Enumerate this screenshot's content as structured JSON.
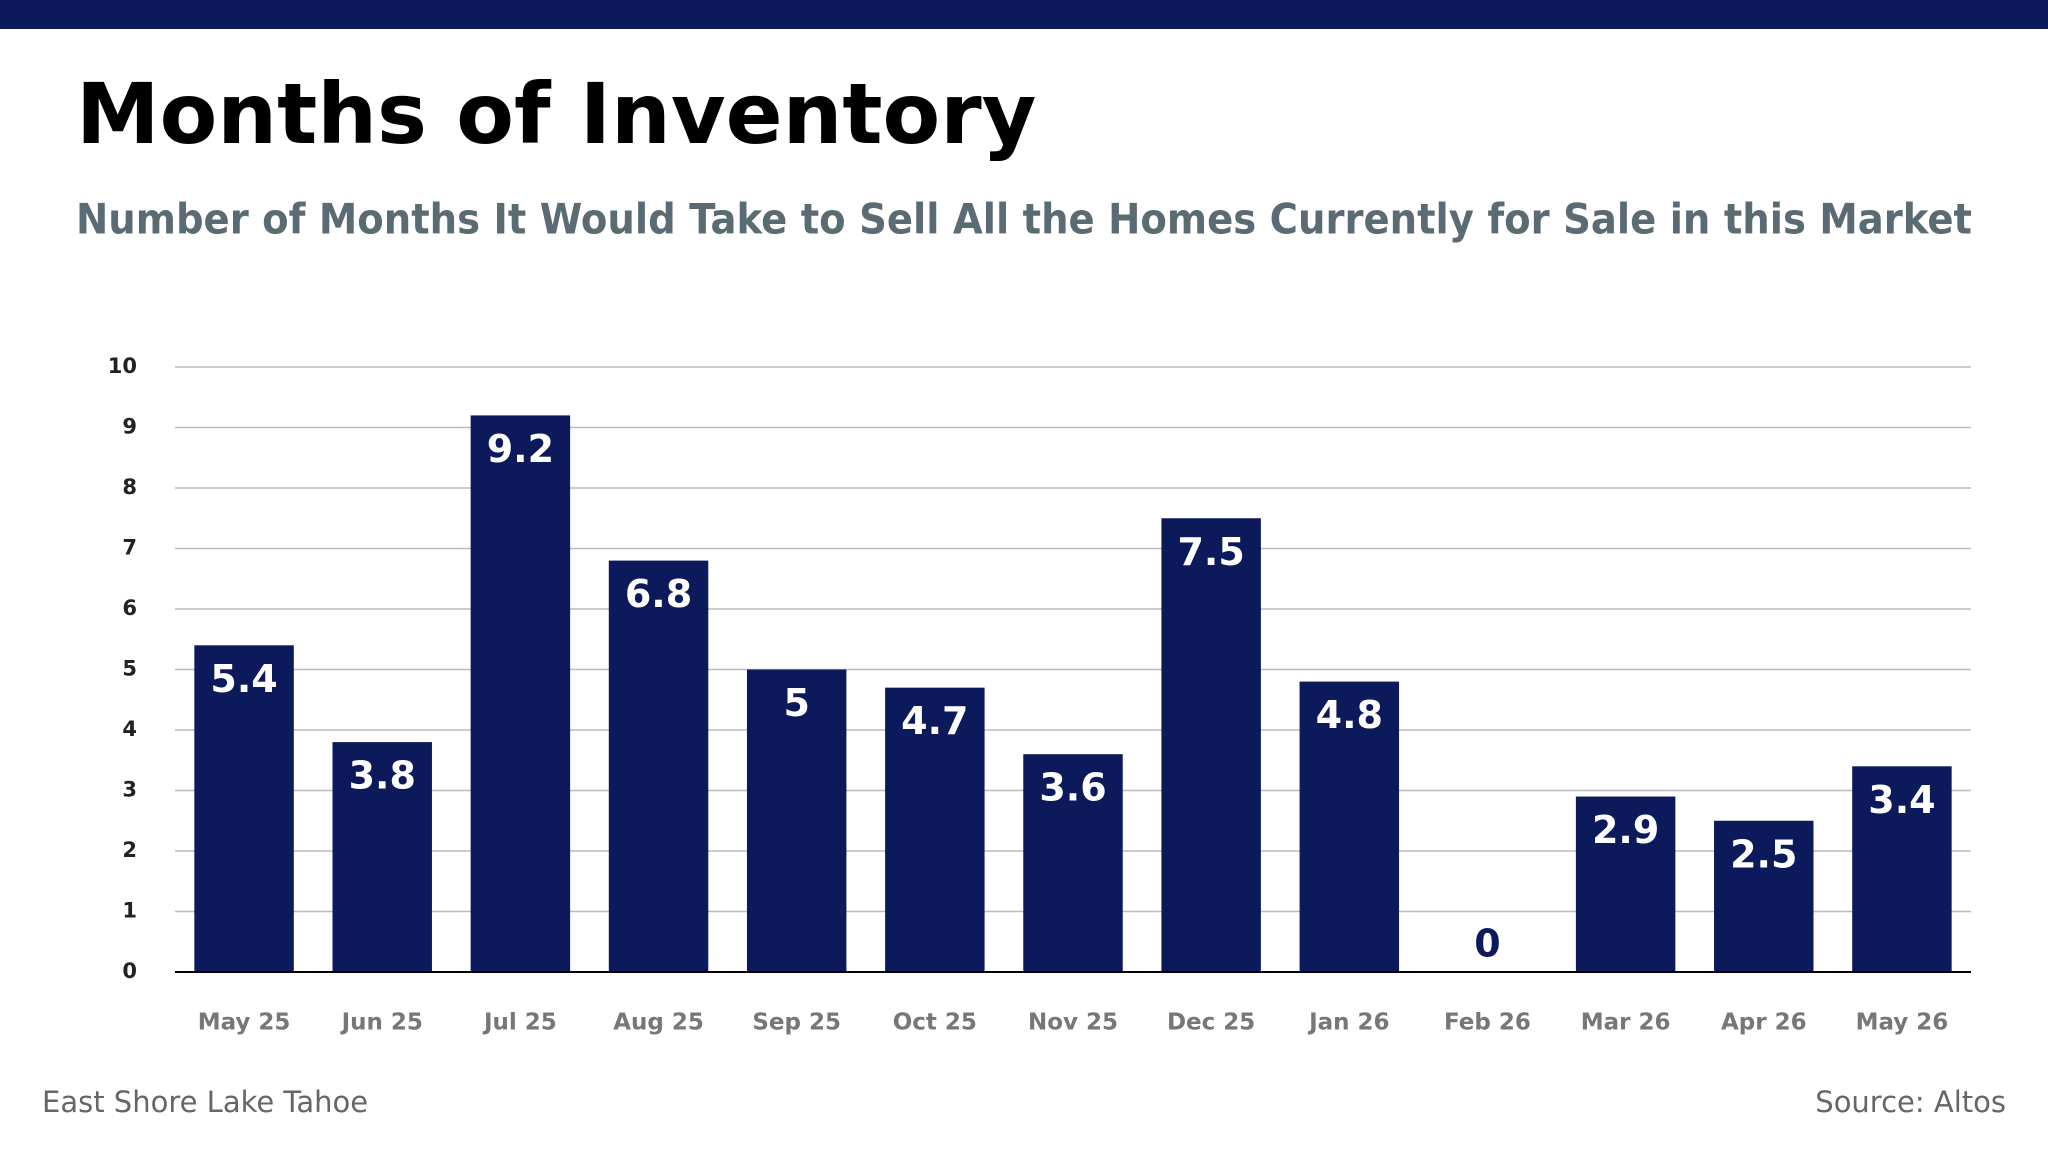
{
  "chart_data": {
    "type": "bar",
    "title": "Months of Inventory",
    "subtitle": "Number of Months It Would Take to Sell All the Homes Currently for Sale in this Market",
    "categories": [
      "May 25",
      "Jun 25",
      "Jul 25",
      "Aug 25",
      "Sep 25",
      "Oct 25",
      "Nov 25",
      "Dec 25",
      "Jan 26",
      "Feb 26",
      "Mar 26",
      "Apr 26",
      "May 26"
    ],
    "values": [
      5.4,
      3.8,
      9.2,
      6.8,
      5,
      4.7,
      3.6,
      7.5,
      4.8,
      0,
      2.9,
      2.5,
      3.4
    ],
    "color": "#0c1a5c",
    "ylim": [
      0,
      10
    ],
    "yticks": [
      0,
      1,
      2,
      3,
      4,
      5,
      6,
      7,
      8,
      9,
      10
    ],
    "grid": true,
    "footer_left": "East Shore Lake Tahoe",
    "source": "Source: Altos"
  }
}
